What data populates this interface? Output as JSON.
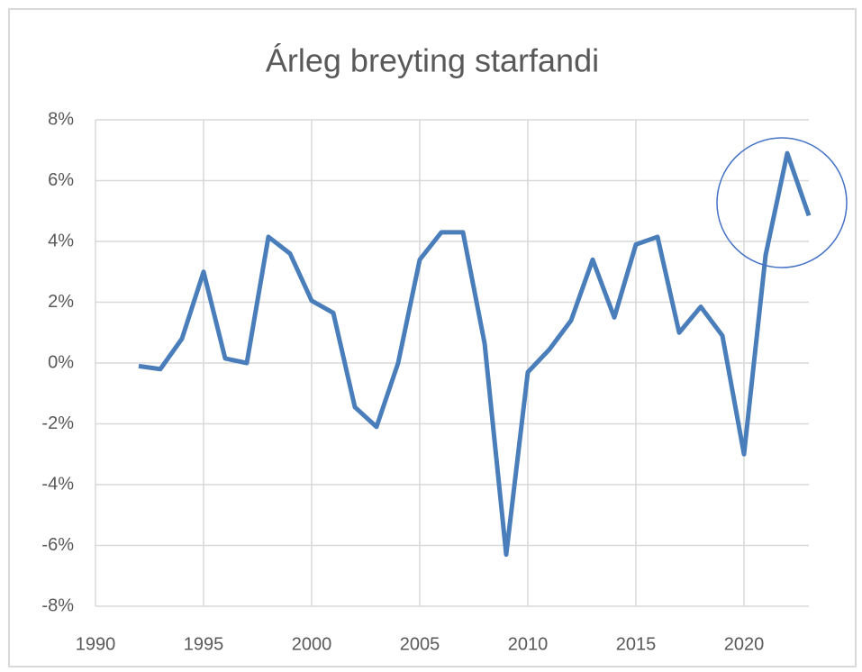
{
  "chart_data": {
    "type": "line",
    "title": "Árleg breyting starfandi",
    "x": [
      1992,
      1993,
      1994,
      1995,
      1996,
      1997,
      1998,
      1999,
      2000,
      2001,
      2002,
      2003,
      2004,
      2005,
      2006,
      2007,
      2008,
      2009,
      2010,
      2011,
      2012,
      2013,
      2014,
      2015,
      2016,
      2017,
      2018,
      2019,
      2020,
      2021,
      2022,
      2023
    ],
    "values": [
      -0.1,
      -0.2,
      0.8,
      3.0,
      0.15,
      0.0,
      4.15,
      3.6,
      2.05,
      1.65,
      -1.45,
      -2.1,
      0.0,
      3.4,
      4.3,
      4.3,
      0.65,
      -6.3,
      -0.3,
      0.45,
      1.4,
      3.4,
      1.5,
      3.9,
      4.15,
      1.0,
      1.85,
      0.9,
      -3.0,
      3.55,
      6.9,
      4.85
    ],
    "color": "#4a7ebb",
    "xlim": [
      1990,
      2023
    ],
    "xticks": [
      1990,
      1995,
      2000,
      2005,
      2010,
      2015,
      2020
    ],
    "ylim": [
      -8,
      8
    ],
    "yticks": [
      {
        "value": -8,
        "label": "-8%"
      },
      {
        "value": -6,
        "label": "-6%"
      },
      {
        "value": -4,
        "label": "-4%"
      },
      {
        "value": -2,
        "label": "-2%"
      },
      {
        "value": 0,
        "label": "0%"
      },
      {
        "value": 2,
        "label": "2%"
      },
      {
        "value": 4,
        "label": "4%"
      },
      {
        "value": 6,
        "label": "6%"
      },
      {
        "value": 8,
        "label": "8%"
      }
    ],
    "grid": true
  }
}
